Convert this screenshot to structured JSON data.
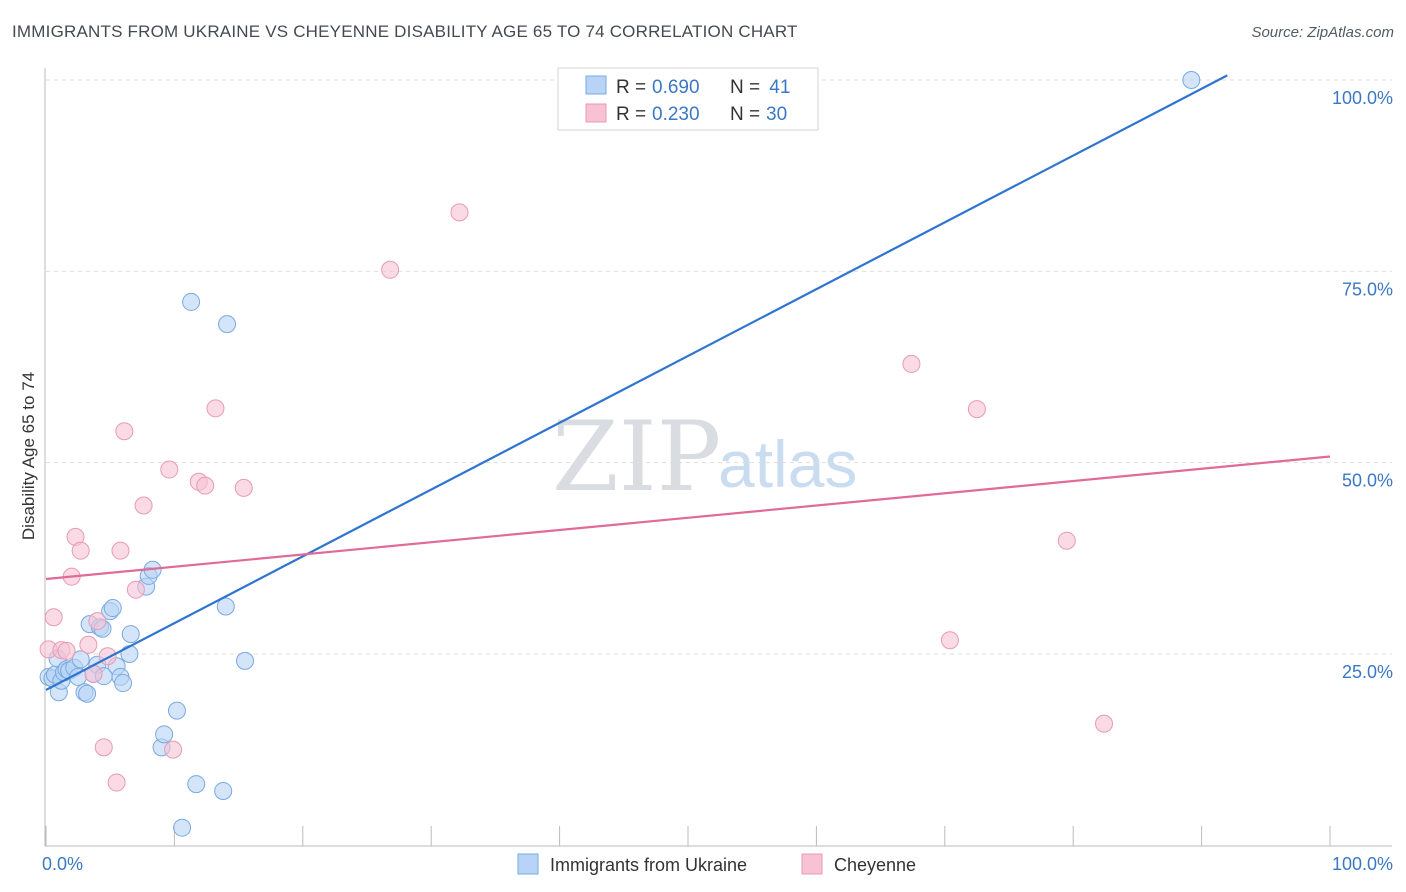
{
  "header": {
    "title": "IMMIGRANTS FROM UKRAINE VS CHEYENNE DISABILITY AGE 65 TO 74 CORRELATION CHART",
    "source": "Source: ZipAtlas.com"
  },
  "watermark": {
    "zip": "ZIP",
    "atlas": "atlas"
  },
  "colors": {
    "blue": "#3b78c4",
    "blue_line": "#2f74d0",
    "blue_fill": "#b7d3f5",
    "pink": "#e06b97",
    "pink_fill": "#f7c3d4",
    "grid": "#dddddd",
    "axis": "#bbbbbb"
  },
  "legend": {
    "rows": [
      {
        "r_label": "R = ",
        "r_value": "0.690",
        "n_label": "N = ",
        "n_value": " 41"
      },
      {
        "r_label": "R = ",
        "r_value": "0.230",
        "n_label": "N = ",
        "n_value": "30"
      }
    ]
  },
  "bottom_legend": [
    "Immigrants from Ukraine",
    "Cheyenne"
  ],
  "chart_data": {
    "type": "scatter",
    "title": "IMMIGRANTS FROM UKRAINE VS CHEYENNE DISABILITY AGE 65 TO 74 CORRELATION CHART",
    "xlabel": "",
    "ylabel": "Disability Age 65 to 74",
    "xlim": [
      0,
      100
    ],
    "ylim": [
      0,
      102
    ],
    "x_tick_labels": [
      "0.0%",
      "100.0%"
    ],
    "y_ticks": [
      25,
      50,
      75,
      100
    ],
    "y_tick_labels": [
      "25.0%",
      "50.0%",
      "75.0%",
      "100.0%"
    ],
    "grid": true,
    "legend_position": "top-center",
    "series": [
      {
        "name": "Immigrants from Ukraine",
        "color": "#3b78c4",
        "r": 0.69,
        "n": 41,
        "trendline": {
          "x": [
            0,
            92
          ],
          "y": [
            20.3,
            100.6
          ]
        },
        "points": [
          [
            0.2,
            22.0
          ],
          [
            0.5,
            21.8
          ],
          [
            0.7,
            22.3
          ],
          [
            0.9,
            24.4
          ],
          [
            1.0,
            20.0
          ],
          [
            1.2,
            21.5
          ],
          [
            1.4,
            22.6
          ],
          [
            1.6,
            23.0
          ],
          [
            1.8,
            22.8
          ],
          [
            2.2,
            23.2
          ],
          [
            2.5,
            22.0
          ],
          [
            2.7,
            24.3
          ],
          [
            3.0,
            20.0
          ],
          [
            3.2,
            19.8
          ],
          [
            3.4,
            28.9
          ],
          [
            3.7,
            22.4
          ],
          [
            4.0,
            23.6
          ],
          [
            4.2,
            28.5
          ],
          [
            4.4,
            28.3
          ],
          [
            4.5,
            22.1
          ],
          [
            5.0,
            30.6
          ],
          [
            5.2,
            31.0
          ],
          [
            5.5,
            23.4
          ],
          [
            5.8,
            22.0
          ],
          [
            6.0,
            21.2
          ],
          [
            6.5,
            25.0
          ],
          [
            6.6,
            27.6
          ],
          [
            7.8,
            33.8
          ],
          [
            8.0,
            35.2
          ],
          [
            8.3,
            36.0
          ],
          [
            9.0,
            12.8
          ],
          [
            9.2,
            14.5
          ],
          [
            10.2,
            17.6
          ],
          [
            10.6,
            2.3
          ],
          [
            11.3,
            71.0
          ],
          [
            11.7,
            8.0
          ],
          [
            13.8,
            7.1
          ],
          [
            14.0,
            31.2
          ],
          [
            14.1,
            68.1
          ],
          [
            15.5,
            24.1
          ],
          [
            89.2,
            100.0
          ]
        ]
      },
      {
        "name": "Cheyenne",
        "color": "#e06b97",
        "r": 0.23,
        "n": 30,
        "trendline": {
          "x": [
            0,
            100
          ],
          "y": [
            34.8,
            50.8
          ]
        },
        "points": [
          [
            0.2,
            25.6
          ],
          [
            0.6,
            29.8
          ],
          [
            1.2,
            25.5
          ],
          [
            1.6,
            25.4
          ],
          [
            2.0,
            35.1
          ],
          [
            2.3,
            40.3
          ],
          [
            2.7,
            38.5
          ],
          [
            3.3,
            26.2
          ],
          [
            3.7,
            22.4
          ],
          [
            4.0,
            29.3
          ],
          [
            4.5,
            12.8
          ],
          [
            4.8,
            24.7
          ],
          [
            5.5,
            8.2
          ],
          [
            5.8,
            38.5
          ],
          [
            6.1,
            54.1
          ],
          [
            7.0,
            33.4
          ],
          [
            7.6,
            44.4
          ],
          [
            9.6,
            49.1
          ],
          [
            9.9,
            12.5
          ],
          [
            11.9,
            47.5
          ],
          [
            12.4,
            47.0
          ],
          [
            13.2,
            57.1
          ],
          [
            15.4,
            46.7
          ],
          [
            26.8,
            75.2
          ],
          [
            32.2,
            82.7
          ],
          [
            67.4,
            62.9
          ],
          [
            70.4,
            26.8
          ],
          [
            72.5,
            57.0
          ],
          [
            79.5,
            39.8
          ],
          [
            82.4,
            15.9
          ]
        ]
      }
    ]
  }
}
